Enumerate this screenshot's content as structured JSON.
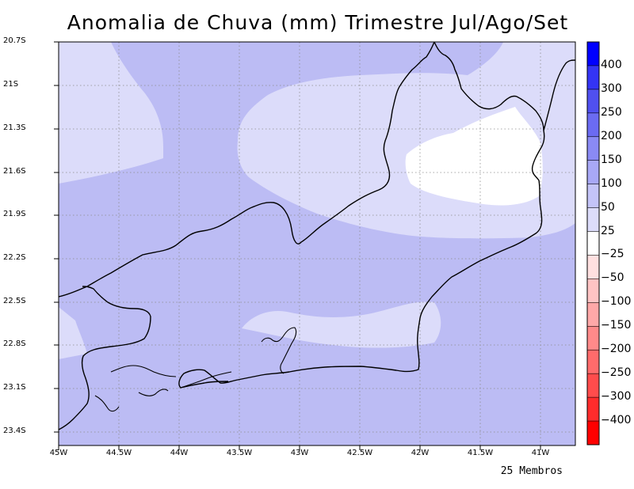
{
  "title": "Anomalia de Chuva (mm) Trimestre Jul/Ago/Set",
  "footer": "25 Membros",
  "map": {
    "lat_labels": [
      "20.7S",
      "21S",
      "21.3S",
      "21.6S",
      "21.9S",
      "22.2S",
      "22.5S",
      "22.8S",
      "23.1S",
      "23.4S"
    ],
    "lon_labels": [
      "45W",
      "44.5W",
      "44W",
      "43.5W",
      "43W",
      "42.5W",
      "42W",
      "41.5W",
      "41W"
    ],
    "lon_range": [
      -45,
      -40.7
    ],
    "lat_range": [
      -23.5,
      -20.7
    ],
    "gridlines": true,
    "region": "Rio de Janeiro"
  },
  "colorbar": {
    "labels": [
      "400",
      "300",
      "250",
      "200",
      "150",
      "100",
      "50",
      "25",
      "−25",
      "−50",
      "−100",
      "−150",
      "−200",
      "−250",
      "−300",
      "−400"
    ],
    "colors": [
      "#0000ff",
      "#3434f5",
      "#5050f0",
      "#6b6bf2",
      "#8a8af4",
      "#a8a8f6",
      "#c4c4f8",
      "#dcdcfa",
      "#ffffff",
      "#ffe0e0",
      "#ffc4c4",
      "#ffa8a8",
      "#ff8a8a",
      "#ff6b6b",
      "#ff4c4c",
      "#ff2c2c",
      "#ff0000"
    ]
  },
  "fill_colors": {
    "lvl_100_150": "#bcbcf4",
    "lvl_50_100": "#dcdcfa",
    "lvl_25_50": "#ffffff"
  }
}
